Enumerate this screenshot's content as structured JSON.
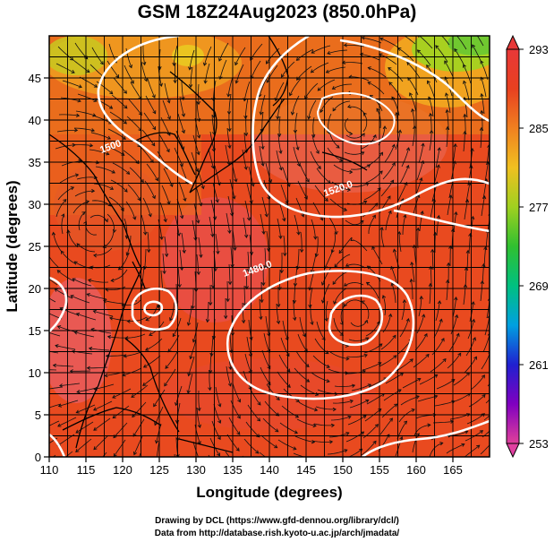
{
  "title": "GSM 18Z24Aug2023 (850.0hPa)",
  "credits": [
    "Drawing by DCL (https://www.gfd-dennou.org/library/dcl/)",
    "Data from http://database.rish.kyoto-u.ac.jp/arch/jmadata/"
  ],
  "chart_data": {
    "type": "heatmap",
    "title": "GSM 18Z24Aug2023 (850.0hPa)",
    "xlabel": "Longitude (degrees)",
    "ylabel": "Latitude  (degrees)",
    "xlim": [
      110,
      170
    ],
    "ylim": [
      0,
      50
    ],
    "x_ticks": [
      110,
      115,
      120,
      125,
      130,
      135,
      140,
      145,
      150,
      155,
      160,
      165
    ],
    "y_ticks": [
      0,
      5,
      10,
      15,
      20,
      25,
      30,
      35,
      40,
      45
    ],
    "grid": true,
    "colorbar": {
      "min": 253,
      "max": 293,
      "ticks": [
        293,
        285,
        277,
        269,
        261,
        253
      ],
      "colors": [
        "#e0409a",
        "#8000c0",
        "#2020d0",
        "#00a0e0",
        "#00c080",
        "#30c030",
        "#a0d020",
        "#f0c020",
        "#f08020",
        "#e84020",
        "#e83838"
      ]
    },
    "contour_labels": [
      {
        "text": "1500",
        "lon": 118.5,
        "lat": 36.5
      },
      {
        "text": "1520.0",
        "lon": 149.5,
        "lat": 31.5
      },
      {
        "text": "1480.0",
        "lon": 138.5,
        "lat": 22.0
      }
    ]
  }
}
